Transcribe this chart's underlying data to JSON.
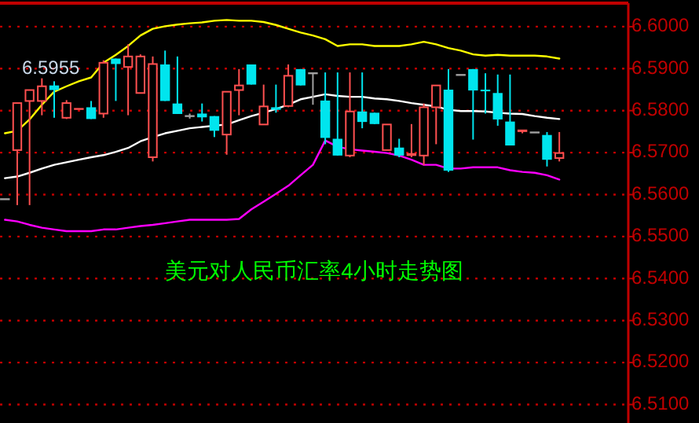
{
  "chart_data": {
    "type": "candlestick",
    "title": "美元对人民币汇率4小时走势图",
    "annotations": [
      "6.5955"
    ],
    "categories": [
      null,
      null,
      null,
      null,
      null,
      null,
      null,
      null,
      null,
      null,
      null,
      null,
      null,
      null,
      null,
      null,
      null,
      null,
      null,
      null,
      null,
      null,
      null,
      null,
      null,
      null,
      null,
      null,
      null,
      null,
      null,
      null,
      null,
      null,
      null,
      null,
      null,
      null,
      null,
      null,
      null,
      null,
      null,
      null,
      null,
      null
    ],
    "ohlc": [
      [
        6.5589,
        6.5589,
        6.5589,
        6.5589
      ],
      [
        6.5706,
        6.5818,
        6.5575,
        6.5818
      ],
      [
        6.5823,
        6.5849,
        6.5575,
        6.5849
      ],
      [
        6.5823,
        6.5877,
        6.5789,
        6.5858
      ],
      [
        6.586,
        6.587,
        6.5783,
        6.5849
      ],
      [
        6.5783,
        6.5825,
        6.578,
        6.5818
      ],
      [
        6.5804,
        6.5804,
        6.5804,
        6.5804
      ],
      [
        6.5808,
        6.5823,
        6.578,
        6.578
      ],
      [
        6.5793,
        6.592,
        6.5783,
        6.5914
      ],
      [
        6.5924,
        6.5924,
        6.5823,
        6.5911
      ],
      [
        6.5904,
        6.5958,
        6.5789,
        6.5929
      ],
      [
        6.5842,
        6.5934,
        6.5842,
        6.5929
      ],
      [
        6.5689,
        6.5929,
        6.5679,
        6.5911
      ],
      [
        6.591,
        6.5943,
        6.5823,
        6.5823
      ],
      [
        6.5817,
        6.5929,
        6.5792,
        6.5792
      ],
      [
        6.5787,
        6.5793,
        6.5781,
        6.5787
      ],
      [
        6.5793,
        6.5817,
        6.5774,
        6.5784
      ],
      [
        6.5787,
        6.5787,
        6.5737,
        6.5752
      ],
      [
        6.5743,
        6.5845,
        6.5695,
        6.5845
      ],
      [
        6.5849,
        6.5899,
        6.5789,
        6.586
      ],
      [
        6.591,
        6.591,
        6.5862,
        6.5862
      ],
      [
        6.5767,
        6.5862,
        6.5767,
        6.581
      ],
      [
        6.5808,
        6.5862,
        6.5795,
        6.5802
      ],
      [
        6.5811,
        6.591,
        6.5808,
        6.5883
      ],
      [
        6.5899,
        6.5899,
        6.586,
        6.586
      ],
      [
        6.5889,
        6.5889,
        6.5814,
        6.5889
      ],
      [
        6.5824,
        6.5891,
        6.572,
        6.5735
      ],
      [
        6.5733,
        6.5891,
        6.5693,
        6.5693
      ],
      [
        6.5693,
        6.5891,
        6.5689,
        6.5798
      ],
      [
        6.5798,
        6.5891,
        6.5758,
        6.5773
      ],
      [
        6.5795,
        6.5795,
        6.5768,
        6.5768
      ],
      [
        6.5706,
        6.5767,
        6.5706,
        6.5767
      ],
      [
        6.5712,
        6.5733,
        6.5689,
        6.5693
      ],
      [
        6.5694,
        6.5768,
        6.5689,
        6.5697
      ],
      [
        6.5693,
        6.5817,
        6.567,
        6.5808
      ],
      [
        6.5808,
        6.586,
        6.572,
        6.586
      ],
      [
        6.585,
        6.5899,
        6.5654,
        6.5657
      ],
      [
        6.5885,
        6.5885,
        6.5885,
        6.5885
      ],
      [
        6.5899,
        6.5899,
        6.5731,
        6.5848
      ],
      [
        6.585,
        6.5889,
        6.5793,
        6.5846
      ],
      [
        6.5842,
        6.5886,
        6.5764,
        6.5779
      ],
      [
        6.5774,
        6.5886,
        6.5717,
        6.5717
      ],
      [
        6.5751,
        6.5753,
        6.5746,
        6.5753
      ],
      [
        6.5748,
        6.5748,
        6.5748,
        6.5748
      ],
      [
        6.5742,
        6.5749,
        6.5667,
        6.5683
      ],
      [
        6.5687,
        6.5749,
        6.5679,
        6.5699
      ]
    ],
    "colors": [
      "#a0a0a0",
      "#ff5050",
      "#ff5050",
      "#ff5050",
      "#00e5ee",
      "#ff5050",
      "#ff5050",
      "#00e5ee",
      "#ff5050",
      "#00e5ee",
      "#ff5050",
      "#ff5050",
      "#ff5050",
      "#00e5ee",
      "#00e5ee",
      "#a0a0a0",
      "#00e5ee",
      "#00e5ee",
      "#ff5050",
      "#ff5050",
      "#00e5ee",
      "#ff5050",
      "#00e5ee",
      "#ff5050",
      "#00e5ee",
      "#a0a0a0",
      "#00e5ee",
      "#00e5ee",
      "#ff5050",
      "#00e5ee",
      "#00e5ee",
      "#ff5050",
      "#00e5ee",
      "#ff5050",
      "#ff5050",
      "#ff5050",
      "#00e5ee",
      "#a0a0a0",
      "#00e5ee",
      "#00e5ee",
      "#00e5ee",
      "#00e5ee",
      "#ff5050",
      "#a0a0a0",
      "#00e5ee",
      "#ff5050"
    ],
    "series": [
      {
        "type": "line",
        "color": "#ffff00",
        "values": [
          6.5746,
          6.5752,
          6.5779,
          6.5814,
          6.5845,
          6.5858,
          6.587,
          6.5879,
          6.5914,
          6.5933,
          6.5954,
          6.5979,
          6.5995,
          6.6001,
          6.6005,
          6.6008,
          6.601,
          6.6014,
          6.6016,
          6.6014,
          6.6014,
          6.6011,
          6.6004,
          6.5995,
          6.5986,
          6.5979,
          6.597,
          6.5954,
          6.5958,
          6.5958,
          6.5954,
          6.5954,
          6.5954,
          6.5958,
          6.5964,
          6.5958,
          6.5949,
          6.5943,
          6.5934,
          6.5931,
          6.5933,
          6.5931,
          6.5931,
          6.5931,
          6.5929,
          6.5924
        ]
      },
      {
        "type": "line",
        "color": "#ffffff",
        "values": [
          6.5639,
          6.5643,
          6.5652,
          6.5662,
          6.5671,
          6.5677,
          6.5683,
          6.5689,
          6.5694,
          6.5702,
          6.5711,
          6.5727,
          6.5737,
          6.5746,
          6.5752,
          6.5758,
          6.5761,
          6.5764,
          6.5767,
          6.5777,
          6.5787,
          6.5795,
          6.5804,
          6.5814,
          6.5827,
          6.5833,
          6.5839,
          6.5835,
          6.5833,
          6.5833,
          6.5829,
          6.5827,
          6.5823,
          6.5818,
          6.5814,
          6.581,
          6.5802,
          6.5799,
          6.5799,
          6.5798,
          6.5795,
          6.5793,
          6.5792,
          6.5787,
          6.5783,
          6.578
        ]
      },
      {
        "type": "line",
        "color": "#ff00ff",
        "values": [
          6.554,
          6.5536,
          6.5528,
          6.5521,
          6.5517,
          6.5513,
          6.5513,
          6.5513,
          6.5517,
          6.5517,
          6.5521,
          6.5525,
          6.5528,
          6.5532,
          6.5536,
          6.554,
          6.554,
          6.554,
          6.554,
          6.5542,
          6.5565,
          6.5583,
          6.5602,
          6.5621,
          6.5646,
          6.5671,
          6.5729,
          6.5714,
          6.5708,
          6.5705,
          6.5702,
          6.5699,
          6.5693,
          6.5683,
          6.5671,
          6.5671,
          6.5662,
          6.5662,
          6.5665,
          6.5665,
          6.5665,
          6.5658,
          6.5654,
          6.5652,
          6.5646,
          6.5636
        ]
      }
    ],
    "ylim": [
      6.5056,
      6.6056
    ],
    "yticks": [
      {
        "value": 6.6,
        "label": "6.6000"
      },
      {
        "value": 6.59,
        "label": "6.5900"
      },
      {
        "value": 6.58,
        "label": "6.5800"
      },
      {
        "value": 6.57,
        "label": "6.5700"
      },
      {
        "value": 6.56,
        "label": "6.5600"
      },
      {
        "value": 6.55,
        "label": "6.5500"
      },
      {
        "value": 6.54,
        "label": "6.5400"
      },
      {
        "value": 6.53,
        "label": "6.5300"
      },
      {
        "value": 6.52,
        "label": "6.5200"
      },
      {
        "value": 6.51,
        "label": "6.5100"
      }
    ],
    "grid": "y",
    "tick_labels": "y"
  }
}
